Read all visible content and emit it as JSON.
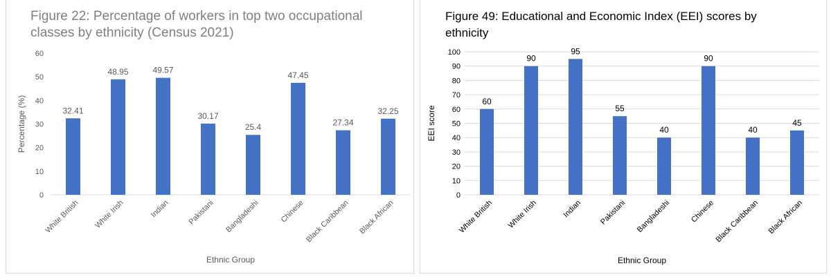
{
  "chart_data": [
    {
      "type": "bar",
      "title": "Figure 22: Percentage of workers in top two occupational classes by ethnicity (Census 2021)",
      "xlabel": "Ethnic Group",
      "ylabel": "Percentage (%)",
      "categories": [
        "White British",
        "White Irish",
        "Indian",
        "Pakistani",
        "Bangladeshi",
        "Chinese",
        "Black Caribbean",
        "Black African"
      ],
      "values": [
        32.41,
        48.95,
        49.57,
        30.17,
        25.4,
        47.45,
        27.34,
        32.25
      ],
      "data_labels": [
        "32.41",
        "48.95",
        "49.57",
        "30.17",
        "25.4",
        "47.45",
        "27.34",
        "32.25"
      ],
      "ylim": [
        0,
        60
      ],
      "yticks": [
        0,
        10,
        20,
        30,
        40,
        50,
        60
      ],
      "grid": false,
      "bar_color": "#4472c4",
      "title_color": "#7f7f7f",
      "label_color": "#595959"
    },
    {
      "type": "bar",
      "title": "Figure 49: Educational and Economic Index (EEI) scores by ethnicity",
      "xlabel": "Ethnic Group",
      "ylabel": "EEI score",
      "categories": [
        "White British",
        "White Irish",
        "Indian",
        "Pakistani",
        "Bangladeshi",
        "Chinese",
        "Black Caribbean",
        "Black African"
      ],
      "values": [
        60,
        90,
        95,
        55,
        40,
        90,
        40,
        45
      ],
      "data_labels": [
        "60",
        "90",
        "95",
        "55",
        "40",
        "90",
        "40",
        "45"
      ],
      "ylim": [
        0,
        100
      ],
      "yticks": [
        0,
        10,
        20,
        30,
        40,
        50,
        60,
        70,
        80,
        90,
        100
      ],
      "grid": true,
      "bar_color": "#4472c4",
      "title_color": "#000000",
      "label_color": "#000000"
    }
  ]
}
